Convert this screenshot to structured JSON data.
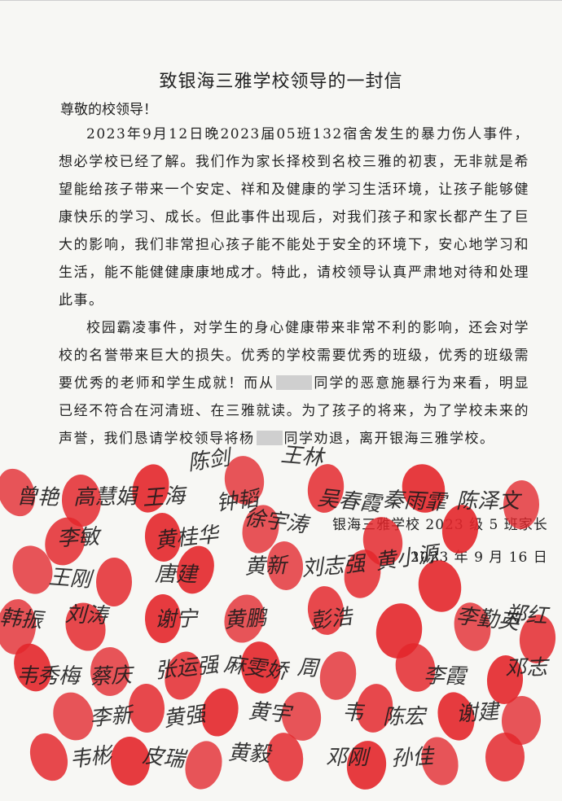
{
  "letter": {
    "title": "致银海三雅学校领导的一封信",
    "greeting": "尊敬的校领导！",
    "p1": "2023年9月12日晚2023届05班132宿舍发生的暴力伤人事件，想必学校已经了解。我们作为家长择校到名校三雅的初衷，无非就是希望能给孩子带来一个安定、祥和及健康的学习生活环境，让孩子能够健康快乐的学习、成长。但此事件出现后，对我们孩子和家长都产生了巨大的影响，我们非常担心孩子能不能处于安全的环境下，安心地学习和生活，能不能健健康康地成才。特此，请校领导认真严肃地对待和处理此事。",
    "p2_a": "校园霸凌事件，对学生的身心健康带来非常不利的影响，还会对学校的名誉带来巨大的损失。优秀的学校需要优秀的班级，优秀的班级需要优秀的老师和学生成就！而从",
    "p2_b": "同学的恶意施暴行为来看，明显已经不符合在河清班、在三雅就读。为了孩子的将来，为了学校未来的声誉，我们恳请学校领导将杨",
    "p2_c": "同学劝退，离开银海三雅学校。",
    "signature": "银海三雅学校 2023 级 5 班家长",
    "date": "2023 年 9 月 16 日"
  },
  "signatures": [
    "陈剑",
    "王林",
    "曾艳",
    "高慧娟",
    "王海",
    "钟韬",
    "吴春霞",
    "秦雨霏",
    "陈泽文",
    "李敏",
    "黄桂华",
    "徐宇涛",
    "王刚",
    "唐建",
    "黄新",
    "刘志强",
    "黄小源",
    "韩振",
    "刘涛",
    "谢宁",
    "黄鹏",
    "彭浩",
    "李勤英",
    "郑红",
    "韦秀梅",
    "蔡庆",
    "张运强",
    "麻雯娇",
    "周",
    "李霞",
    "邓志",
    "李新",
    "黄强",
    "黄宇",
    "韦",
    "陈宏",
    "谢建",
    "韦彬",
    "皮瑞",
    "黄毅",
    "邓刚",
    "孙佳"
  ],
  "colors": {
    "thumbprint": "#e3262b",
    "paper": "#f7f7f4",
    "ink": "#222222"
  }
}
